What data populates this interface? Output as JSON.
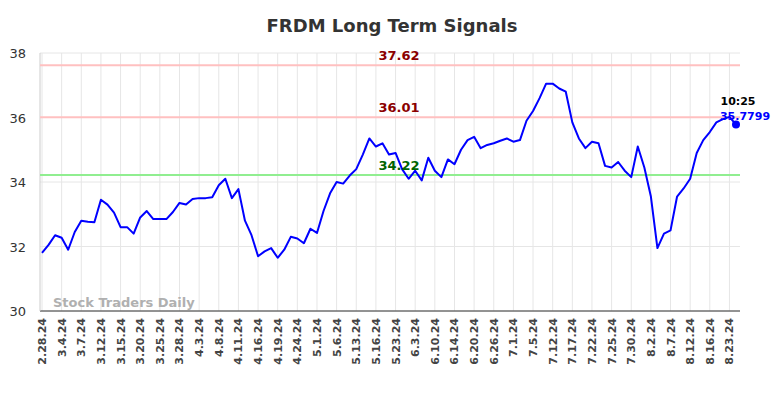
{
  "chart_data": {
    "type": "line",
    "title": "FRDM Long Term Signals",
    "watermark": "Stock Traders Daily",
    "categories": [
      "2.28.24",
      null,
      null,
      "3.4.24",
      null,
      null,
      "3.7.24",
      null,
      null,
      "3.12.24",
      null,
      null,
      "3.15.24",
      null,
      null,
      "3.20.24",
      null,
      null,
      "3.25.24",
      null,
      null,
      "3.28.24",
      null,
      null,
      "4.3.24",
      null,
      null,
      "4.8.24",
      null,
      null,
      "4.11.24",
      null,
      null,
      "4.16.24",
      null,
      null,
      "4.19.24",
      null,
      null,
      "4.24.24",
      null,
      null,
      "5.1.24",
      null,
      null,
      "5.6.24",
      null,
      null,
      "5.13.24",
      null,
      null,
      "5.16.24",
      null,
      null,
      "5.23.24",
      null,
      null,
      "6.3.24",
      null,
      null,
      "6.10.24",
      null,
      null,
      "6.14.24",
      null,
      null,
      "6.20.24",
      null,
      null,
      "6.26.24",
      null,
      null,
      "7.1.24",
      null,
      null,
      "7.5.24",
      null,
      null,
      "7.12.24",
      null,
      null,
      "7.17.24",
      null,
      null,
      "7.22.24",
      null,
      null,
      "7.25.24",
      null,
      null,
      "7.30.24",
      null,
      null,
      "8.2.24",
      null,
      null,
      "8.7.24",
      null,
      null,
      "8.12.24",
      null,
      null,
      "8.16.24",
      null,
      null,
      "8.23.24",
      null
    ],
    "values": [
      31.8,
      32.05,
      32.35,
      32.27,
      31.9,
      32.45,
      32.8,
      32.77,
      32.75,
      33.45,
      33.3,
      33.05,
      32.6,
      32.6,
      32.4,
      32.9,
      33.1,
      32.85,
      32.85,
      32.85,
      33.07,
      33.35,
      33.3,
      33.47,
      33.5,
      33.5,
      33.53,
      33.9,
      34.1,
      33.5,
      33.78,
      32.8,
      32.35,
      31.7,
      31.85,
      31.95,
      31.65,
      31.9,
      32.3,
      32.25,
      32.1,
      32.55,
      32.42,
      33.1,
      33.65,
      34.0,
      33.95,
      34.2,
      34.4,
      34.85,
      35.35,
      35.1,
      35.2,
      34.85,
      34.9,
      34.4,
      34.1,
      34.35,
      34.05,
      34.75,
      34.35,
      34.15,
      34.7,
      34.55,
      35.0,
      35.3,
      35.4,
      35.05,
      35.15,
      35.2,
      35.28,
      35.35,
      35.25,
      35.3,
      35.9,
      36.2,
      36.6,
      37.05,
      37.05,
      36.9,
      36.8,
      35.85,
      35.35,
      35.05,
      35.25,
      35.2,
      34.5,
      34.45,
      34.62,
      34.35,
      34.15,
      35.1,
      34.45,
      33.55,
      31.95,
      32.4,
      32.5,
      33.55,
      33.8,
      34.1,
      34.9,
      35.3,
      35.55,
      35.85,
      35.95,
      36.02,
      35.7799
    ],
    "color": "#0000ff",
    "last_time": "10:25",
    "levels": [
      {
        "value": 37.62,
        "color": "#ffc0c0",
        "label_color": "#8b0000"
      },
      {
        "value": 36.01,
        "color": "#ffc0c0",
        "label_color": "#8b0000"
      },
      {
        "value": 34.22,
        "color": "#90ee90",
        "label_color": "#006400"
      }
    ],
    "ylim": [
      30,
      38
    ],
    "yticks": [
      30,
      32,
      34,
      36,
      38
    ],
    "grid": true
  }
}
